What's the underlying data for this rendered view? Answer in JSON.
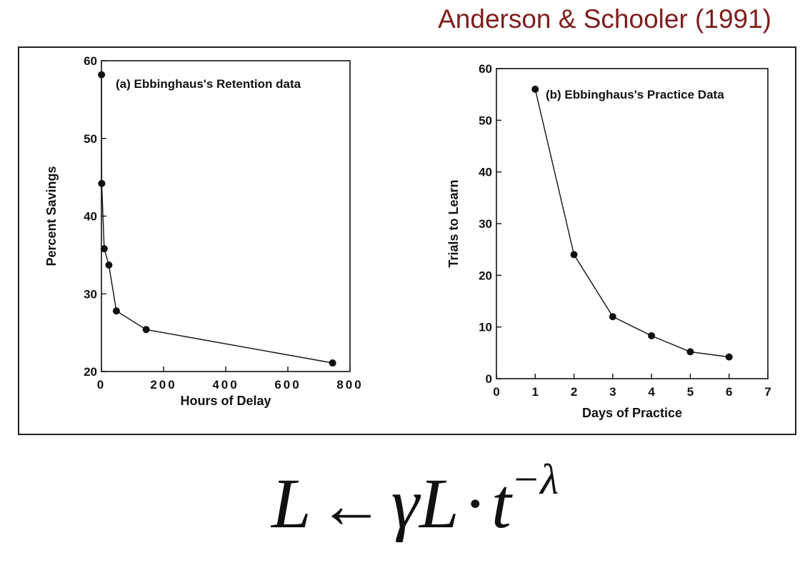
{
  "citation": "Anderson & Schooler (1991)",
  "formula": {
    "lhs": "L",
    "arrow": "←",
    "gamma": "γ",
    "L2": "L",
    "dot": "·",
    "t": "t",
    "exponent": "−λ"
  },
  "chart_data": [
    {
      "type": "line",
      "title": "(a) Ebbinghaus's Retention data",
      "xlabel": "Hours of Delay",
      "ylabel": "Percent Savings",
      "xlim": [
        0,
        800
      ],
      "ylim": [
        20,
        60
      ],
      "xticks": [
        0,
        200,
        400,
        600,
        800
      ],
      "yticks": [
        20,
        30,
        40,
        50,
        60
      ],
      "xtick_labels": [
        "0",
        "200",
        "400",
        "600",
        "800"
      ],
      "ytick_labels": [
        "20",
        "30",
        "40",
        "50",
        "60"
      ],
      "grid": false,
      "series": [
        {
          "x": [
            0.33,
            1,
            9,
            24,
            48,
            144,
            744
          ],
          "y": [
            58.2,
            44.2,
            35.8,
            33.7,
            27.8,
            25.4,
            21.1
          ]
        }
      ]
    },
    {
      "type": "line",
      "title": "(b) Ebbinghaus's Practice Data",
      "xlabel": "Days of Practice",
      "ylabel": "Trials to Learn",
      "xlim": [
        0,
        7
      ],
      "ylim": [
        0,
        60
      ],
      "xticks": [
        0,
        1,
        2,
        3,
        4,
        5,
        6,
        7
      ],
      "yticks": [
        0,
        10,
        20,
        30,
        40,
        50,
        60
      ],
      "xtick_labels": [
        "0",
        "1",
        "2",
        "3",
        "4",
        "5",
        "6",
        "7"
      ],
      "ytick_labels": [
        "0",
        "10",
        "20",
        "30",
        "40",
        "50",
        "60"
      ],
      "grid": false,
      "series": [
        {
          "x": [
            1,
            2,
            3,
            4,
            5,
            6
          ],
          "y": [
            56,
            24,
            12,
            8.3,
            5.2,
            4.2
          ]
        }
      ]
    }
  ]
}
